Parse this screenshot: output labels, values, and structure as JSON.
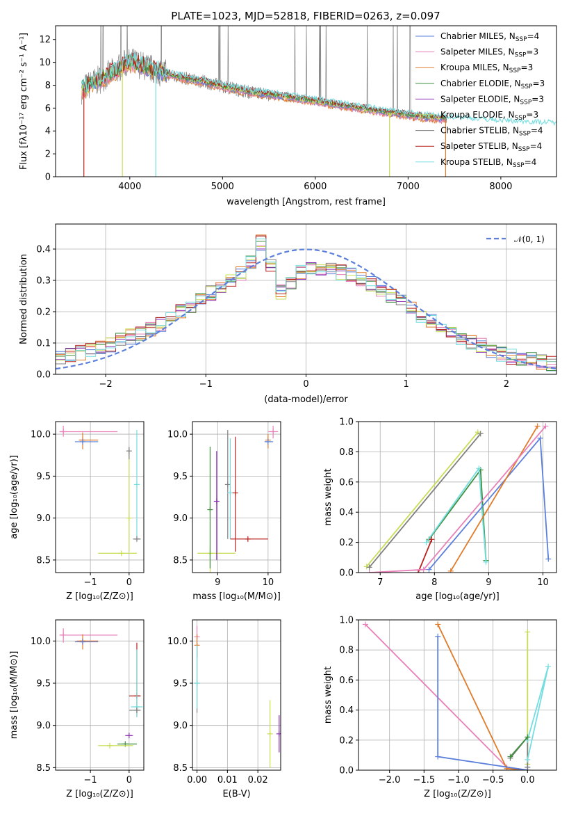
{
  "title": "PLATE=1023, MJD=52818, FIBERID=0263, z=0.097",
  "colors": {
    "chabrier_miles": "#5b7fdb",
    "salpeter_miles": "#e87fb8",
    "kroupa_miles": "#e07b2a",
    "chabrier_elodie": "#3f8f3f",
    "salpeter_elodie": "#8b2fb5",
    "kroupa_elodie": "#c8dd55",
    "chabrier_stelib": "#7f7f7f",
    "salpeter_stelib": "#b8201d",
    "kroupa_stelib": "#74dde0"
  },
  "chart_data": [
    {
      "id": "spectrum",
      "type": "line",
      "title": "PLATE=1023, MJD=52818, FIBERID=0263, z=0.097",
      "xlabel": "wavelength [Angstrom, rest frame]",
      "ylabel": "Flux [fλ10⁻¹⁷ erg cm⁻² s⁻¹ A⁻¹]",
      "xlim": [
        3200,
        8600
      ],
      "ylim": [
        0,
        13.2
      ],
      "xticks": [
        "4000",
        "5000",
        "6000",
        "7000",
        "8000"
      ],
      "yticks": [
        "0",
        "2",
        "4",
        "6",
        "8",
        "10",
        "12"
      ],
      "grid": false,
      "legend_loc": "upper right",
      "legend": [
        {
          "key": "chabrier_miles",
          "label": "Chabrier MILES, N",
          "sub": "SSP",
          "tail": "=4"
        },
        {
          "key": "salpeter_miles",
          "label": "Salpeter MILES, N",
          "sub": "SSP",
          "tail": "=3"
        },
        {
          "key": "kroupa_miles",
          "label": "Kroupa MILES, N",
          "sub": "SSP",
          "tail": "=3"
        },
        {
          "key": "chabrier_elodie",
          "label": "Chabrier ELODIE, N",
          "sub": "SSP",
          "tail": "=3"
        },
        {
          "key": "salpeter_elodie",
          "label": "Salpeter ELODIE, N",
          "sub": "SSP",
          "tail": "=3"
        },
        {
          "key": "kroupa_elodie",
          "label": "Kroupa ELODIE, N",
          "sub": "SSP",
          "tail": "=3"
        },
        {
          "key": "chabrier_stelib",
          "label": "Chabrier STELIB, N",
          "sub": "SSP",
          "tail": "=4"
        },
        {
          "key": "salpeter_stelib",
          "label": "Salpeter STELIB, N",
          "sub": "SSP",
          "tail": "=4"
        },
        {
          "key": "kroupa_stelib",
          "label": "Kroupa STELIB, N",
          "sub": "SSP",
          "tail": "=4"
        }
      ],
      "continuum": {
        "x": [
          3480,
          3560,
          3700,
          3850,
          3950,
          4050,
          4200,
          4400,
          4600,
          4800,
          5000,
          5300,
          5600,
          6000,
          6400,
          6800,
          7200,
          7500,
          8000,
          8600
        ],
        "y": [
          7.6,
          8.0,
          8.6,
          9.3,
          9.9,
          10.0,
          9.5,
          9.0,
          8.6,
          8.3,
          7.9,
          7.4,
          7.1,
          6.6,
          6.1,
          5.6,
          5.2,
          5.0,
          4.7,
          4.5
        ]
      }
    },
    {
      "id": "residuals",
      "type": "line",
      "xlabel": "(data-model)/error",
      "ylabel": "Normed distribution",
      "xlim": [
        -2.5,
        2.5
      ],
      "ylim": [
        0,
        0.48
      ],
      "xticks": [
        "−2",
        "−1",
        "0",
        "1",
        "2"
      ],
      "yticks": [
        "0.0",
        "0.1",
        "0.2",
        "0.3",
        "0.4"
      ],
      "grid": true,
      "legend_loc": "upper right",
      "legend": [
        {
          "label": "𝒩(0, 1)",
          "style": "dashed"
        }
      ],
      "histogram_envelope": {
        "x": [
          -2.5,
          -2.0,
          -1.5,
          -1.0,
          -0.6,
          -0.4,
          -0.3,
          0.0,
          0.3,
          0.6,
          1.0,
          1.5,
          2.0,
          2.5
        ],
        "y": [
          0.05,
          0.09,
          0.15,
          0.25,
          0.33,
          0.45,
          0.25,
          0.34,
          0.33,
          0.3,
          0.22,
          0.12,
          0.06,
          0.03
        ]
      }
    },
    {
      "id": "age_vs_Z",
      "type": "scatter",
      "xlabel": "Z [log₁₀(Z/Z⊙)]",
      "ylabel": "age  [log₁₀(age/yr)]",
      "xlim": [
        -1.9,
        0.38
      ],
      "ylim": [
        8.35,
        10.15
      ],
      "xticks": [
        {
          "v": -1,
          "t": "−1"
        },
        {
          "v": 0,
          "t": "0"
        }
      ],
      "yticks": [
        {
          "v": 8.5,
          "t": "8.5"
        },
        {
          "v": 9.0,
          "t": "9.0"
        },
        {
          "v": 9.5,
          "t": "9.5"
        },
        {
          "v": 10.0,
          "t": "10.0"
        }
      ],
      "grid": true,
      "points": [
        {
          "c": "salpeter_miles",
          "x": -1.7,
          "y": 10.03,
          "xe": [
            -1.8,
            -0.3
          ],
          "ye": [
            9.97,
            10.1
          ]
        },
        {
          "c": "kroupa_miles",
          "x": -1.2,
          "y": 9.93,
          "xe": [
            -1.3,
            -0.8
          ],
          "ye": [
            9.82,
            10.02
          ]
        },
        {
          "c": "chabrier_miles",
          "x": -1.2,
          "y": 9.91,
          "xe": [
            -1.4,
            -0.8
          ]
        },
        {
          "c": "kroupa_elodie",
          "x": 0.0,
          "y": 9.0,
          "ye": [
            8.6,
            9.8
          ]
        },
        {
          "c": "chabrier_stelib",
          "x": 0.0,
          "y": 9.8,
          "ye": [
            9.7,
            9.85
          ]
        },
        {
          "c": "kroupa_stelib",
          "x": 0.2,
          "y": 9.4,
          "ye": [
            8.75,
            10.05
          ]
        },
        {
          "c": "chabrier_stelib",
          "x": 0.2,
          "y": 8.75,
          "xe": [
            0.1,
            0.3
          ]
        },
        {
          "c": "kroupa_elodie",
          "x": -0.2,
          "y": 8.58,
          "xe": [
            -0.8,
            0.2
          ]
        }
      ]
    },
    {
      "id": "age_vs_mass",
      "type": "scatter",
      "xlabel": "mass [log₁₀(M/M⊙)]",
      "ylabel": "",
      "xlim": [
        8.5,
        10.25
      ],
      "ylim": [
        8.35,
        10.15
      ],
      "xticks": [
        {
          "v": 9,
          "t": "9"
        },
        {
          "v": 10,
          "t": "10"
        }
      ],
      "yticks": [
        {
          "v": 8.5,
          "t": "8.5"
        },
        {
          "v": 9.0,
          "t": "9.0"
        },
        {
          "v": 9.5,
          "t": "9.5"
        },
        {
          "v": 10.0,
          "t": "10.0"
        }
      ],
      "grid": true,
      "points": [
        {
          "c": "kroupa_elodie",
          "x": 8.85,
          "y": 8.58,
          "xe": [
            8.6,
            9.35
          ],
          "ye": [
            8.35,
            8.65
          ]
        },
        {
          "c": "chabrier_elodie",
          "x": 8.85,
          "y": 9.1,
          "ye": [
            8.4,
            9.85
          ]
        },
        {
          "c": "salpeter_elodie",
          "x": 8.98,
          "y": 9.2,
          "ye": [
            8.5,
            9.8
          ]
        },
        {
          "c": "chabrier_stelib",
          "x": 9.2,
          "y": 9.4,
          "ye": [
            8.75,
            10.05
          ]
        },
        {
          "c": "kroupa_stelib",
          "x": 9.25,
          "y": 9.3,
          "ye": [
            8.75,
            9.95
          ]
        },
        {
          "c": "salpeter_stelib",
          "x": 9.35,
          "y": 9.3,
          "ye": [
            8.6,
            9.97
          ]
        },
        {
          "c": "salpeter_stelib",
          "x": 9.6,
          "y": 8.75,
          "xe": [
            9.25,
            10.0
          ]
        },
        {
          "c": "salpeter_miles",
          "x": 10.1,
          "y": 10.03,
          "xe": [
            10.0,
            10.2
          ],
          "ye": [
            9.95,
            10.1
          ]
        },
        {
          "c": "kroupa_miles",
          "x": 10.0,
          "y": 9.93,
          "ye": [
            9.83,
            10.0
          ]
        },
        {
          "c": "chabrier_miles",
          "x": 10.0,
          "y": 9.91,
          "xe": [
            9.93,
            10.1
          ]
        }
      ]
    },
    {
      "id": "massweight_vs_age",
      "type": "line",
      "xlabel": "age  [log₁₀(age/yr)]",
      "ylabel": "mass weight",
      "xlim": [
        6.6,
        10.25
      ],
      "ylim": [
        0,
        1.0
      ],
      "xticks": [
        {
          "v": 7,
          "t": "7"
        },
        {
          "v": 8,
          "t": "8"
        },
        {
          "v": 9,
          "t": "9"
        },
        {
          "v": 10,
          "t": "10"
        }
      ],
      "yticks": [
        {
          "v": 0,
          "t": "0.0"
        },
        {
          "v": 0.2,
          "t": "0.2"
        },
        {
          "v": 0.4,
          "t": "0.4"
        },
        {
          "v": 0.6,
          "t": "0.6"
        },
        {
          "v": 0.8,
          "t": "0.8"
        },
        {
          "v": 1.0,
          "t": "1.0"
        }
      ],
      "grid": true,
      "series": [
        {
          "c": "kroupa_elodie",
          "x": [
            6.75,
            8.8
          ],
          "y": [
            0.04,
            0.93
          ]
        },
        {
          "c": "chabrier_stelib",
          "x": [
            6.8,
            8.85
          ],
          "y": [
            0.035,
            0.92
          ]
        },
        {
          "c": "chabrier_elodie",
          "x": [
            7.9,
            8.85,
            8.95
          ],
          "y": [
            0.22,
            0.68,
            0.08
          ]
        },
        {
          "c": "kroupa_stelib",
          "x": [
            7.85,
            8.82,
            8.95
          ],
          "y": [
            0.2,
            0.69,
            0.07
          ]
        },
        {
          "c": "salpeter_stelib",
          "x": [
            7.7,
            7.95
          ],
          "y": [
            0.0,
            0.22
          ]
        },
        {
          "c": "chabrier_miles",
          "x": [
            7.9,
            9.95,
            10.1
          ],
          "y": [
            0.02,
            0.89,
            0.09
          ]
        },
        {
          "c": "kroupa_miles",
          "x": [
            8.3,
            9.9
          ],
          "y": [
            0.01,
            0.97
          ]
        },
        {
          "c": "salpeter_miles",
          "x": [
            6.8,
            7.8,
            10.05
          ],
          "y": [
            0.0,
            0.02,
            0.97
          ]
        }
      ]
    },
    {
      "id": "mass_vs_Z",
      "type": "scatter",
      "xlabel": "Z [log₁₀(Z/Z⊙)]",
      "ylabel": "mass [log₁₀(M/M⊙)]",
      "xlim": [
        -1.9,
        0.38
      ],
      "ylim": [
        8.47,
        10.25
      ],
      "xticks": [
        {
          "v": -1,
          "t": "−1"
        },
        {
          "v": 0,
          "t": "0"
        }
      ],
      "yticks": [
        {
          "v": 8.5,
          "t": "8.5"
        },
        {
          "v": 9.0,
          "t": "9.0"
        },
        {
          "v": 9.5,
          "t": "9.5"
        },
        {
          "v": 10.0,
          "t": "10.0"
        }
      ],
      "grid": true,
      "points": [
        {
          "c": "salpeter_miles",
          "x": -1.7,
          "y": 10.07,
          "xe": [
            -1.8,
            -0.3
          ],
          "ye": [
            9.98,
            10.15
          ]
        },
        {
          "c": "kroupa_miles",
          "x": -1.2,
          "y": 10.0,
          "xe": [
            -1.35,
            -0.8
          ],
          "ye": [
            9.9,
            10.08
          ]
        },
        {
          "c": "chabrier_miles",
          "x": -1.2,
          "y": 9.99,
          "xe": [
            -1.4,
            -0.8
          ]
        },
        {
          "c": "salpeter_stelib",
          "x": 0.2,
          "y": 9.35,
          "xe": [
            0.0,
            0.3
          ],
          "ye": [
            9.1,
            9.98
          ]
        },
        {
          "c": "kroupa_stelib",
          "x": 0.2,
          "y": 9.22,
          "xe": [
            0.05,
            0.35
          ],
          "ye": [
            9.1,
            9.9
          ]
        },
        {
          "c": "chabrier_stelib",
          "x": 0.2,
          "y": 9.18,
          "xe": [
            0.0,
            0.3
          ]
        },
        {
          "c": "salpeter_elodie",
          "x": 0.0,
          "y": 8.88,
          "xe": [
            -0.1,
            0.1
          ]
        },
        {
          "c": "chabrier_elodie",
          "x": -0.1,
          "y": 8.78,
          "xe": [
            -0.3,
            0.2
          ]
        },
        {
          "c": "kroupa_elodie",
          "x": -0.5,
          "y": 8.76,
          "xe": [
            -0.8,
            0.1
          ]
        }
      ]
    },
    {
      "id": "mass_vs_ebv",
      "type": "scatter",
      "xlabel": "E(B-V)",
      "ylabel": "",
      "xlim": [
        -0.0015,
        0.0275
      ],
      "ylim": [
        8.47,
        10.25
      ],
      "xticks": [
        {
          "v": 0.0,
          "t": "0.00"
        },
        {
          "v": 0.01,
          "t": "0.01"
        },
        {
          "v": 0.02,
          "t": "0.02"
        }
      ],
      "yticks": [
        {
          "v": 8.5,
          "t": "8.5"
        },
        {
          "v": 9.0,
          "t": "9.0"
        },
        {
          "v": 9.5,
          "t": "9.5"
        },
        {
          "v": 10.0,
          "t": "10.0"
        }
      ],
      "grid": true,
      "points": [
        {
          "c": "salpeter_miles",
          "x": 0.0,
          "y": 10.05,
          "ye": [
            9.8,
            10.18
          ]
        },
        {
          "c": "kroupa_miles",
          "x": 0.0,
          "y": 9.95,
          "ye": [
            9.8,
            10.08
          ]
        },
        {
          "c": "chabrier_stelib",
          "x": 0.0,
          "y": 9.5,
          "ye": [
            9.15,
            9.9
          ]
        },
        {
          "c": "kroupa_stelib",
          "x": 0.0,
          "y": 9.5,
          "ye": [
            9.2,
            9.95
          ]
        },
        {
          "c": "kroupa_elodie",
          "x": 0.024,
          "y": 8.9,
          "ye": [
            8.5,
            9.3
          ]
        },
        {
          "c": "salpeter_elodie",
          "x": 0.027,
          "y": 8.9,
          "ye": [
            8.68,
            9.12
          ]
        }
      ]
    },
    {
      "id": "massweight_vs_Z",
      "type": "line",
      "xlabel": "Z [log₁₀(Z/Z⊙)]",
      "ylabel": "mass weight",
      "xlim": [
        -2.45,
        0.42
      ],
      "ylim": [
        0,
        1.0
      ],
      "xticks": [
        {
          "v": -2.0,
          "t": "−2.0"
        },
        {
          "v": -1.5,
          "t": "−1.5"
        },
        {
          "v": -1.0,
          "t": "−1.0"
        },
        {
          "v": -0.5,
          "t": "−0.5"
        },
        {
          "v": 0.0,
          "t": "0.0"
        }
      ],
      "yticks": [
        {
          "v": 0,
          "t": "0.0"
        },
        {
          "v": 0.2,
          "t": "0.2"
        },
        {
          "v": 0.4,
          "t": "0.4"
        },
        {
          "v": 0.6,
          "t": "0.6"
        },
        {
          "v": 0.8,
          "t": "0.8"
        },
        {
          "v": 1.0,
          "t": "1.0"
        }
      ],
      "grid": true,
      "series": [
        {
          "c": "salpeter_miles",
          "x": [
            -2.35,
            -0.3,
            0.0
          ],
          "y": [
            0.97,
            0.02,
            0.0
          ]
        },
        {
          "c": "kroupa_miles",
          "x": [
            -1.3,
            -0.3,
            0.0
          ],
          "y": [
            0.97,
            0.01,
            0.0
          ]
        },
        {
          "c": "chabrier_miles",
          "x": [
            -1.3,
            -1.3,
            0.0,
            0.0
          ],
          "y": [
            0.89,
            0.09,
            0.0,
            0.02
          ]
        },
        {
          "c": "kroupa_elodie",
          "x": [
            0.0,
            0.0
          ],
          "y": [
            0.92,
            0.04
          ]
        },
        {
          "c": "chabrier_stelib",
          "x": [
            -0.25,
            0.0,
            0.0
          ],
          "y": [
            0.08,
            0.22,
            0.02
          ]
        },
        {
          "c": "kroupa_stelib",
          "x": [
            0.0,
            0.3,
            0.0
          ],
          "y": [
            0.07,
            0.69,
            0.2
          ]
        },
        {
          "c": "chabrier_elodie",
          "x": [
            -0.25,
            0.0
          ],
          "y": [
            0.09,
            0.22
          ]
        }
      ]
    }
  ]
}
